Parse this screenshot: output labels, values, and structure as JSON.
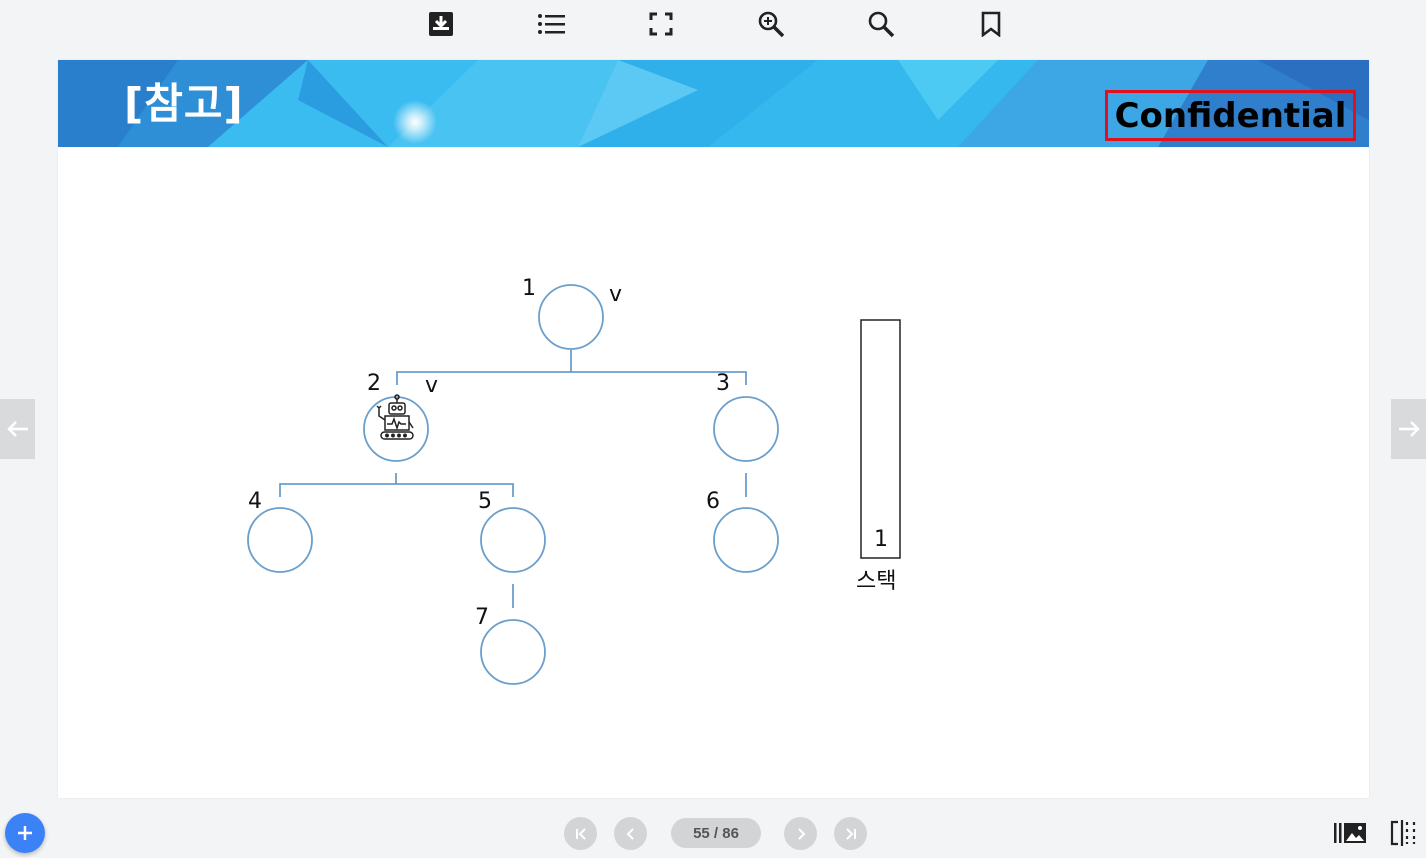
{
  "toolbar": {
    "icons": [
      "download-icon",
      "list-icon",
      "fullscreen-icon",
      "zoom-in-icon",
      "search-icon",
      "bookmark-icon"
    ]
  },
  "slide": {
    "header_title": "[참고]",
    "confidential_label": "Confidential",
    "tree": {
      "nodes": [
        {
          "id": "1",
          "label": "1",
          "visited": "v"
        },
        {
          "id": "2",
          "label": "2",
          "visited": "v",
          "icon": "robot-icon"
        },
        {
          "id": "3",
          "label": "3"
        },
        {
          "id": "4",
          "label": "4"
        },
        {
          "id": "5",
          "label": "5"
        },
        {
          "id": "6",
          "label": "6"
        },
        {
          "id": "7",
          "label": "7"
        }
      ]
    },
    "stack": {
      "items": [
        "1"
      ],
      "caption": "스택"
    }
  },
  "pagination": {
    "page_text": "55 / 86"
  },
  "colors": {
    "node_stroke": "#6b9fcb",
    "banner_blue": "#2fb4ec",
    "confidential_border": "#e0101c",
    "fab": "#3b82f6"
  }
}
